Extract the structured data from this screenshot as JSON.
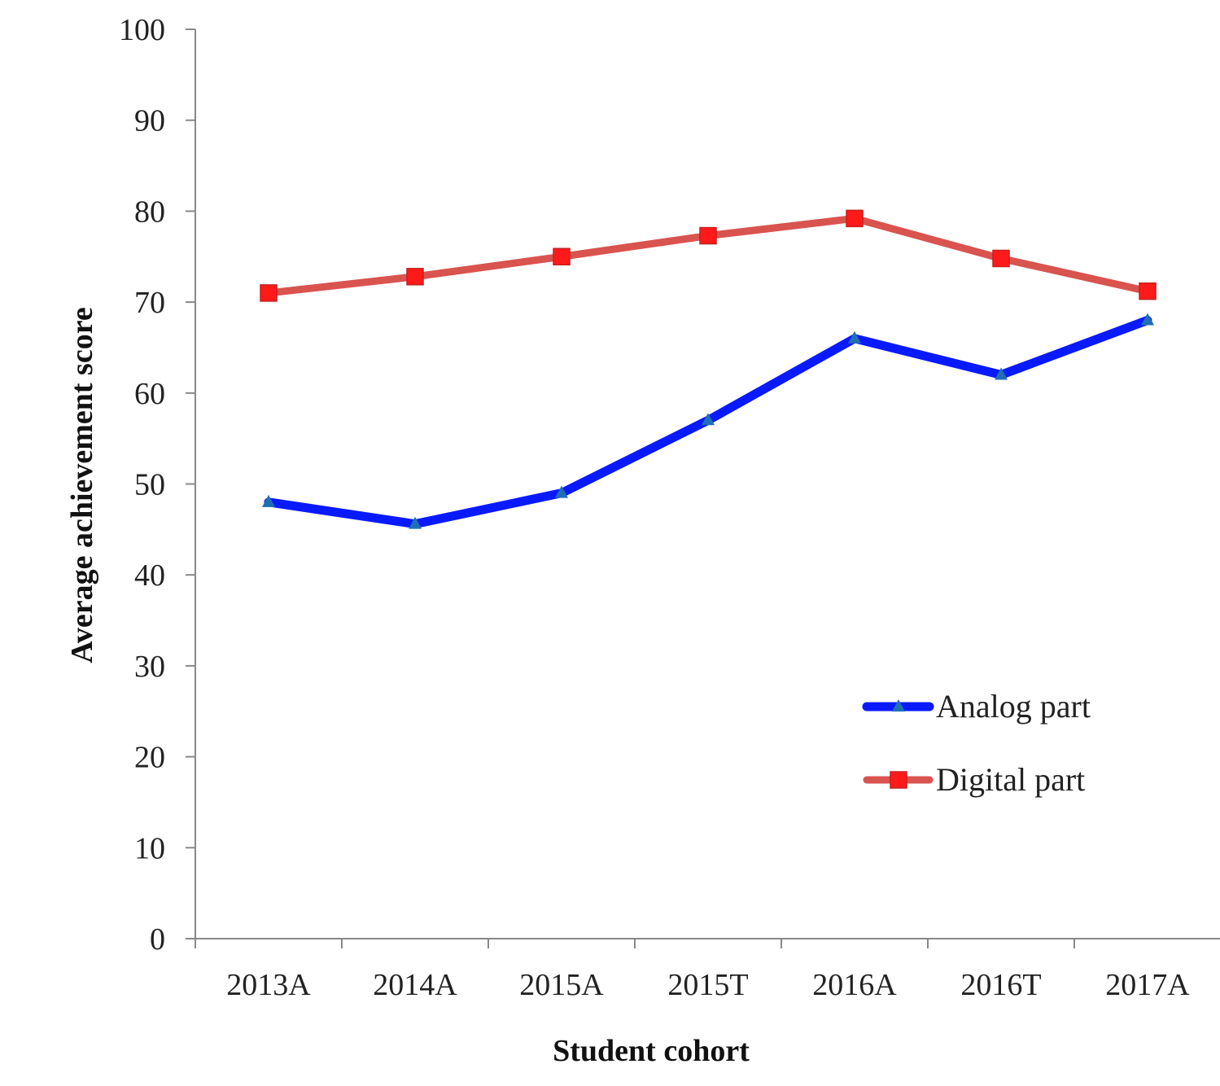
{
  "chart_data": {
    "type": "line",
    "title": "",
    "xlabel": "Student cohort",
    "ylabel": "Average achievement score",
    "categories": [
      "2013A",
      "2014A",
      "2015A",
      "2015T",
      "2016A",
      "2016T",
      "2017A"
    ],
    "ylim": [
      0,
      100
    ],
    "yticks": [
      0,
      10,
      20,
      30,
      40,
      50,
      60,
      70,
      80,
      90,
      100
    ],
    "grid": false,
    "legend_position": "lower-right",
    "series": [
      {
        "name": "Analog part",
        "values": [
          48,
          45.6,
          49,
          57,
          66,
          62,
          68
        ],
        "color": "#0a1aff",
        "marker": "triangle",
        "marker_color": "#1f6fb5"
      },
      {
        "name": "Digital part",
        "values": [
          71,
          72.8,
          75,
          77.3,
          79.2,
          74.8,
          71.2
        ],
        "color": "#d9534f",
        "marker": "square",
        "marker_color": "#ff1a1a"
      }
    ]
  }
}
